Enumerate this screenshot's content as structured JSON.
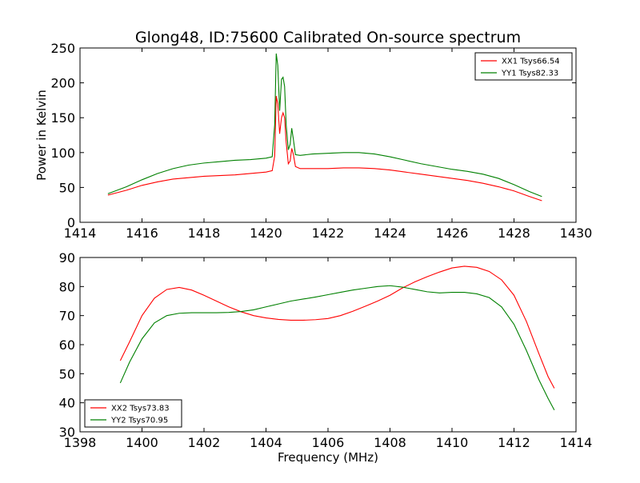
{
  "title": "Glong48, ID:75600 Calibrated On-source spectrum",
  "colors": {
    "xx": "#ff0000",
    "yy": "#008000"
  },
  "chart_data": [
    {
      "type": "line",
      "ylabel": "Power in Kelvin",
      "xlabel": "",
      "xlim": [
        1414,
        1430
      ],
      "ylim": [
        0,
        250
      ],
      "xticks": [
        1414,
        1416,
        1418,
        1420,
        1422,
        1424,
        1426,
        1428,
        1430
      ],
      "yticks": [
        0,
        50,
        100,
        150,
        200,
        250
      ],
      "legend_position": "top-right",
      "series": [
        {
          "name": "XX1 Tsys66.54",
          "color": "#ff0000",
          "points": [
            [
              1414.9,
              39
            ],
            [
              1415.5,
              46
            ],
            [
              1416.0,
              53
            ],
            [
              1416.5,
              58
            ],
            [
              1417.0,
              62
            ],
            [
              1417.5,
              64
            ],
            [
              1418.0,
              66
            ],
            [
              1418.5,
              67
            ],
            [
              1419.0,
              68
            ],
            [
              1419.5,
              70
            ],
            [
              1420.0,
              72
            ],
            [
              1420.2,
              74
            ],
            [
              1420.28,
              95
            ],
            [
              1420.33,
              181
            ],
            [
              1420.38,
              170
            ],
            [
              1420.44,
              127
            ],
            [
              1420.5,
              150
            ],
            [
              1420.55,
              157
            ],
            [
              1420.6,
              150
            ],
            [
              1420.65,
              115
            ],
            [
              1420.72,
              84
            ],
            [
              1420.78,
              88
            ],
            [
              1420.83,
              106
            ],
            [
              1420.88,
              98
            ],
            [
              1420.95,
              80
            ],
            [
              1421.1,
              77
            ],
            [
              1421.5,
              77
            ],
            [
              1422.0,
              77
            ],
            [
              1422.5,
              78
            ],
            [
              1423.0,
              78
            ],
            [
              1423.5,
              77
            ],
            [
              1424.0,
              75
            ],
            [
              1424.5,
              72
            ],
            [
              1425.0,
              69
            ],
            [
              1425.5,
              66
            ],
            [
              1426.0,
              63
            ],
            [
              1426.5,
              60
            ],
            [
              1427.0,
              56
            ],
            [
              1427.5,
              51
            ],
            [
              1428.0,
              45
            ],
            [
              1428.5,
              37
            ],
            [
              1428.9,
              31
            ]
          ]
        },
        {
          "name": "YY1 Tsys82.33",
          "color": "#008000",
          "points": [
            [
              1414.9,
              41
            ],
            [
              1415.5,
              51
            ],
            [
              1416.0,
              61
            ],
            [
              1416.5,
              70
            ],
            [
              1417.0,
              77
            ],
            [
              1417.5,
              82
            ],
            [
              1418.0,
              85
            ],
            [
              1418.5,
              87
            ],
            [
              1419.0,
              89
            ],
            [
              1419.5,
              90
            ],
            [
              1420.0,
              92
            ],
            [
              1420.2,
              94
            ],
            [
              1420.28,
              140
            ],
            [
              1420.33,
              242
            ],
            [
              1420.38,
              225
            ],
            [
              1420.44,
              160
            ],
            [
              1420.5,
              205
            ],
            [
              1420.55,
              208
            ],
            [
              1420.6,
              195
            ],
            [
              1420.65,
              140
            ],
            [
              1420.72,
              104
            ],
            [
              1420.78,
              112
            ],
            [
              1420.83,
              135
            ],
            [
              1420.88,
              120
            ],
            [
              1420.95,
              97
            ],
            [
              1421.1,
              96
            ],
            [
              1421.5,
              98
            ],
            [
              1422.0,
              99
            ],
            [
              1422.5,
              100
            ],
            [
              1423.0,
              100
            ],
            [
              1423.5,
              98
            ],
            [
              1424.0,
              94
            ],
            [
              1424.5,
              89
            ],
            [
              1425.0,
              84
            ],
            [
              1425.5,
              80
            ],
            [
              1426.0,
              76
            ],
            [
              1426.5,
              73
            ],
            [
              1427.0,
              69
            ],
            [
              1427.5,
              63
            ],
            [
              1428.0,
              54
            ],
            [
              1428.5,
              44
            ],
            [
              1428.9,
              37
            ]
          ]
        }
      ]
    },
    {
      "type": "line",
      "ylabel": "",
      "xlabel": "Frequency (MHz)",
      "xlim": [
        1398,
        1414
      ],
      "ylim": [
        30,
        90
      ],
      "xticks": [
        1398,
        1400,
        1402,
        1404,
        1406,
        1408,
        1410,
        1412,
        1414
      ],
      "yticks": [
        30,
        40,
        50,
        60,
        70,
        80,
        90
      ],
      "legend_position": "bottom-left",
      "series": [
        {
          "name": "XX2 Tsys73.83",
          "color": "#ff0000",
          "points": [
            [
              1399.3,
              54.5
            ],
            [
              1399.6,
              61
            ],
            [
              1400.0,
              70
            ],
            [
              1400.4,
              76
            ],
            [
              1400.8,
              79
            ],
            [
              1401.2,
              79.7
            ],
            [
              1401.6,
              78.8
            ],
            [
              1402.0,
              77
            ],
            [
              1402.4,
              75
            ],
            [
              1402.8,
              73
            ],
            [
              1403.2,
              71.3
            ],
            [
              1403.6,
              70
            ],
            [
              1404.0,
              69.2
            ],
            [
              1404.4,
              68.7
            ],
            [
              1404.8,
              68.4
            ],
            [
              1405.2,
              68.4
            ],
            [
              1405.6,
              68.6
            ],
            [
              1406.0,
              69
            ],
            [
              1406.4,
              70
            ],
            [
              1406.8,
              71.5
            ],
            [
              1407.2,
              73.2
            ],
            [
              1407.6,
              75
            ],
            [
              1408.0,
              77
            ],
            [
              1408.4,
              79.5
            ],
            [
              1408.8,
              81.6
            ],
            [
              1409.2,
              83.4
            ],
            [
              1409.6,
              85
            ],
            [
              1410.0,
              86.4
            ],
            [
              1410.4,
              87
            ],
            [
              1410.8,
              86.6
            ],
            [
              1411.2,
              85.2
            ],
            [
              1411.6,
              82.3
            ],
            [
              1412.0,
              77
            ],
            [
              1412.4,
              68
            ],
            [
              1412.8,
              57
            ],
            [
              1413.1,
              49
            ],
            [
              1413.3,
              45
            ]
          ]
        },
        {
          "name": "YY2 Tsys70.95",
          "color": "#008000",
          "points": [
            [
              1399.3,
              46.8
            ],
            [
              1399.6,
              54
            ],
            [
              1400.0,
              62
            ],
            [
              1400.4,
              67.5
            ],
            [
              1400.8,
              70
            ],
            [
              1401.2,
              70.8
            ],
            [
              1401.6,
              71
            ],
            [
              1402.0,
              71
            ],
            [
              1402.4,
              71
            ],
            [
              1402.8,
              71.1
            ],
            [
              1403.2,
              71.4
            ],
            [
              1403.6,
              72
            ],
            [
              1404.0,
              73
            ],
            [
              1404.4,
              74
            ],
            [
              1404.8,
              75
            ],
            [
              1405.2,
              75.7
            ],
            [
              1405.6,
              76.4
            ],
            [
              1406.0,
              77.2
            ],
            [
              1406.4,
              78
            ],
            [
              1406.8,
              78.8
            ],
            [
              1407.2,
              79.4
            ],
            [
              1407.6,
              80
            ],
            [
              1408.0,
              80.3
            ],
            [
              1408.4,
              79.8
            ],
            [
              1408.8,
              79
            ],
            [
              1409.2,
              78.2
            ],
            [
              1409.6,
              77.8
            ],
            [
              1410.0,
              78
            ],
            [
              1410.4,
              78
            ],
            [
              1410.8,
              77.5
            ],
            [
              1411.2,
              76.2
            ],
            [
              1411.6,
              73
            ],
            [
              1412.0,
              67
            ],
            [
              1412.4,
              58
            ],
            [
              1412.8,
              48
            ],
            [
              1413.1,
              41.5
            ],
            [
              1413.3,
              37.5
            ]
          ]
        }
      ]
    }
  ]
}
